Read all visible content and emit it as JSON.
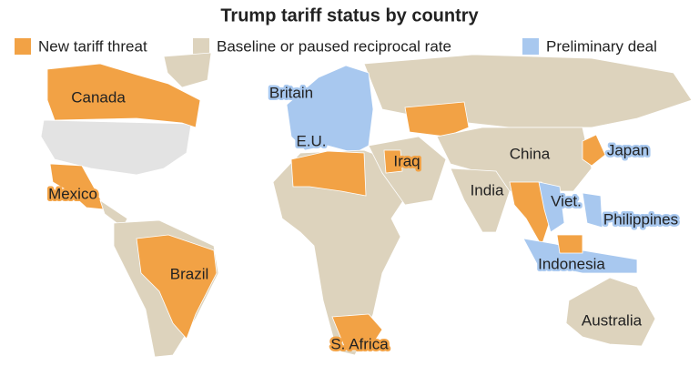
{
  "title": "Trump tariff status by country",
  "legend": [
    {
      "label": "New tariff threat",
      "color": "#f2a245"
    },
    {
      "label": "Baseline or paused reciprocal rate",
      "color": "#ddd3bd"
    },
    {
      "label": "Preliminary deal",
      "color": "#a8c8ef"
    }
  ],
  "labels": [
    "Canada",
    "Britain",
    "E.U.",
    "Mexico",
    "Iraq",
    "China",
    "Japan",
    "India",
    "Viet.",
    "Philippines",
    "Brazil",
    "Indonesia",
    "Australia",
    "S. Africa"
  ]
}
